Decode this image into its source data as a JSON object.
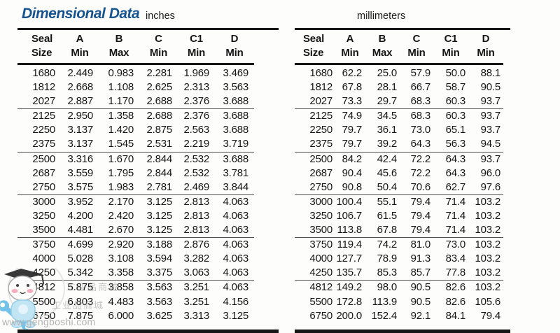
{
  "header": {
    "title": "Dimensional Data",
    "left_unit": "inches",
    "right_unit": "millimeters"
  },
  "columns": [
    {
      "top": "Seal",
      "bottom": "Size"
    },
    {
      "top": "A",
      "bottom": "Min"
    },
    {
      "top": "B",
      "bottom": "Max"
    },
    {
      "top": "C",
      "bottom": "Min"
    },
    {
      "top": "C1",
      "bottom": "Min"
    },
    {
      "top": "D",
      "bottom": "Min"
    }
  ],
  "inches": {
    "rows": [
      [
        "1680",
        "2.449",
        "0.983",
        "2.281",
        "1.969",
        "3.469"
      ],
      [
        "1812",
        "2.668",
        "1.108",
        "2.625",
        "2.313",
        "3.563"
      ],
      [
        "2027",
        "2.887",
        "1.170",
        "2.688",
        "2.376",
        "3.688"
      ],
      [
        "2125",
        "2.950",
        "1.358",
        "2.688",
        "2.376",
        "3.688"
      ],
      [
        "2250",
        "3.137",
        "1.420",
        "2.875",
        "2.563",
        "3.688"
      ],
      [
        "2375",
        "3.137",
        "1.545",
        "2.531",
        "2.219",
        "3.719"
      ],
      [
        "2500",
        "3.316",
        "1.670",
        "2.844",
        "2.532",
        "3.688"
      ],
      [
        "2687",
        "3.559",
        "1.795",
        "2.844",
        "2.532",
        "3.781"
      ],
      [
        "2750",
        "3.575",
        "1.983",
        "2.781",
        "2.469",
        "3.844"
      ],
      [
        "3000",
        "3.952",
        "2.170",
        "3.125",
        "2.813",
        "4.063"
      ],
      [
        "3250",
        "4.200",
        "2.420",
        "3.125",
        "2.813",
        "4.063"
      ],
      [
        "3500",
        "4.481",
        "2.670",
        "3.125",
        "2.813",
        "4.063"
      ],
      [
        "3750",
        "4.699",
        "2.920",
        "3.188",
        "2.876",
        "4.063"
      ],
      [
        "4000",
        "5.028",
        "3.108",
        "3.594",
        "3.282",
        "4.063"
      ],
      [
        "4250",
        "5.342",
        "3.358",
        "3.375",
        "3.063",
        "4.063"
      ],
      [
        "4812",
        "5.875",
        "3.858",
        "3.563",
        "3.251",
        "4.063"
      ],
      [
        "5500",
        "6.803",
        "4.483",
        "3.563",
        "3.251",
        "4.156"
      ],
      [
        "6750",
        "7.875",
        "6.000",
        "3.625",
        "3.313",
        "3.125"
      ]
    ]
  },
  "millimeters": {
    "rows": [
      [
        "1680",
        "62.2",
        "25.0",
        "57.9",
        "50.0",
        "88.1"
      ],
      [
        "1812",
        "67.8",
        "28.1",
        "66.7",
        "58.7",
        "90.5"
      ],
      [
        "2027",
        "73.3",
        "29.7",
        "68.3",
        "60.3",
        "93.7"
      ],
      [
        "2125",
        "74.9",
        "34.5",
        "68.3",
        "60.3",
        "93.7"
      ],
      [
        "2250",
        "79.7",
        "36.1",
        "73.0",
        "65.1",
        "93.7"
      ],
      [
        "2375",
        "79.7",
        "39.2",
        "64.3",
        "56.3",
        "94.5"
      ],
      [
        "2500",
        "84.2",
        "42.4",
        "72.2",
        "64.3",
        "93.7"
      ],
      [
        "2687",
        "90.4",
        "45.6",
        "72.2",
        "64.3",
        "96.0"
      ],
      [
        "2750",
        "90.8",
        "50.4",
        "70.6",
        "62.7",
        "97.6"
      ],
      [
        "3000",
        "100.4",
        "55.1",
        "79.4",
        "71.4",
        "103.2"
      ],
      [
        "3250",
        "106.7",
        "61.5",
        "79.4",
        "71.4",
        "103.2"
      ],
      [
        "3500",
        "113.8",
        "67.8",
        "79.4",
        "71.4",
        "103.2"
      ],
      [
        "3750",
        "119.4",
        "74.2",
        "81.0",
        "73.0",
        "103.2"
      ],
      [
        "4000",
        "127.7",
        "78.9",
        "91.3",
        "83.4",
        "103.2"
      ],
      [
        "4250",
        "135.7",
        "85.3",
        "85.7",
        "77.8",
        "103.2"
      ],
      [
        "4812",
        "149.2",
        "98.0",
        "90.5",
        "82.6",
        "103.2"
      ],
      [
        "5500",
        "172.8",
        "113.9",
        "90.5",
        "82.6",
        "105.6"
      ],
      [
        "6750",
        "200.0",
        "152.4",
        "92.1",
        "84.1",
        "79.4"
      ]
    ]
  },
  "watermark": {
    "site": "www.gengboshi.com",
    "label": "工业品商城"
  },
  "colors": {
    "title_blue": "#17548f",
    "rule_black": "#161616",
    "text": "#151515",
    "watermark_gray": "#b3b3b3",
    "mascot_blue": "#bfe4f4"
  }
}
